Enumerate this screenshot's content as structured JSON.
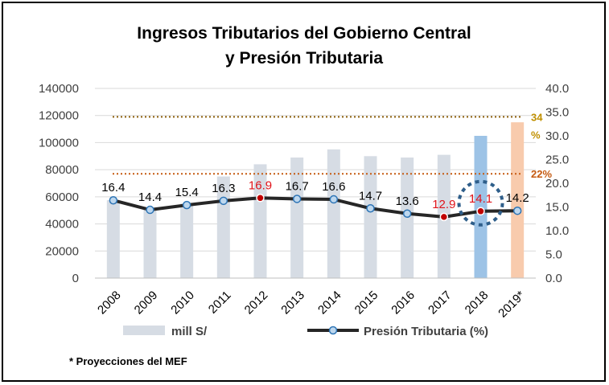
{
  "chart_data": {
    "type": "bar+line",
    "title_lines": [
      "Ingresos Tributarios del Gobierno Central",
      "y Presión Tributaria"
    ],
    "categories": [
      "2008",
      "2009",
      "2010",
      "2011",
      "2012",
      "2013",
      "2014",
      "2015",
      "2016",
      "2017",
      "2018",
      "2019*"
    ],
    "series": [
      {
        "name": "mill S/",
        "kind": "bar",
        "axis": "left",
        "values": [
          57500,
          51500,
          55000,
          75000,
          84000,
          89000,
          95000,
          90000,
          89000,
          91000,
          105000,
          115000
        ],
        "colors": [
          "#d6dce4",
          "#d6dce4",
          "#d6dce4",
          "#d6dce4",
          "#d6dce4",
          "#d6dce4",
          "#d6dce4",
          "#d6dce4",
          "#d6dce4",
          "#d6dce4",
          "#9dc3e6",
          "#f8cbad"
        ]
      },
      {
        "name": "Presión Tributaria (%)",
        "kind": "line",
        "axis": "right",
        "values": [
          16.4,
          14.4,
          15.4,
          16.3,
          16.9,
          16.7,
          16.6,
          14.7,
          13.6,
          12.9,
          14.1,
          14.2
        ],
        "labels": [
          "16.4",
          "14.4",
          "15.4",
          "16.3",
          "16.9",
          "16.7",
          "16.6",
          "14.7",
          "13.6",
          "12.9",
          "14.1",
          "14.2"
        ],
        "highlight_indices": [
          4,
          9,
          10
        ],
        "line_color": "#262626",
        "marker_color": "#bdd7ee",
        "highlight_marker_color": "#c00000"
      }
    ],
    "left_axis": {
      "min": 0,
      "max": 140000,
      "step": 20000,
      "tick_labels": [
        "0",
        "20000",
        "40000",
        "60000",
        "80000",
        "100000",
        "120000",
        "140000"
      ]
    },
    "right_axis": {
      "min": 0,
      "max": 40,
      "step": 5,
      "tick_labels": [
        "0.0",
        "5.0",
        "10.0",
        "15.0",
        "20.0",
        "25.0",
        "30.0",
        "35.0",
        "40.0"
      ]
    },
    "reference_lines": [
      {
        "value": 34,
        "axis": "right",
        "label_top": "34",
        "label_bottom": "%",
        "color": "#8b5e0a",
        "label_color": "#c09000"
      },
      {
        "value": 22,
        "axis": "right",
        "label_top": "22%",
        "label_bottom": "",
        "color": "#c55a11",
        "label_color": "#c55a11"
      }
    ],
    "circled_index": 10,
    "grid": true,
    "legend_position": "bottom",
    "legend": [
      "mill S/",
      "Presión Tributaria (%)"
    ],
    "footnote": "* Proyecciones del MEF"
  }
}
